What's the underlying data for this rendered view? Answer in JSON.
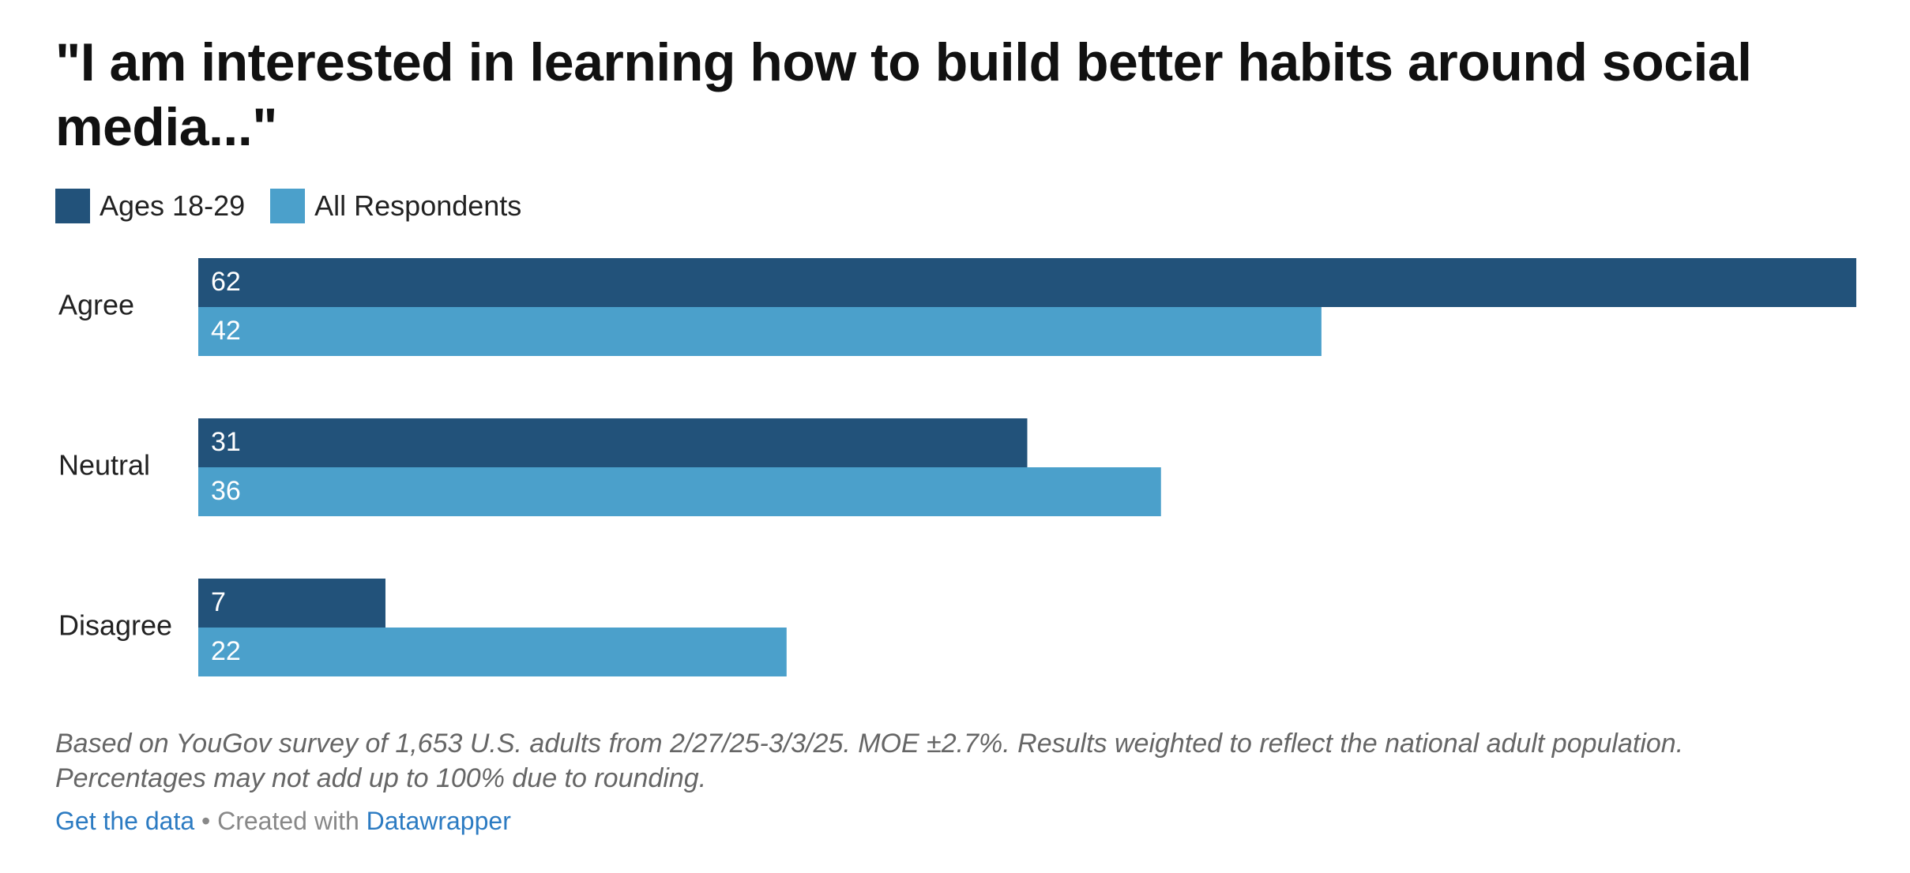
{
  "colors": {
    "ages_18_29": "#22527a",
    "all_respondents": "#4ba0cb"
  },
  "chart_data": {
    "type": "bar",
    "orientation": "horizontal",
    "title": "\"I am interested in learning how to build better habits around social media...\"",
    "categories": [
      "Agree",
      "Neutral",
      "Disagree"
    ],
    "series": [
      {
        "name": "Ages 18-29",
        "values": [
          62,
          31,
          7
        ]
      },
      {
        "name": "All Respondents",
        "values": [
          42,
          36,
          22
        ]
      }
    ],
    "xlim": [
      0,
      62
    ],
    "legend": "top-left",
    "grid": false,
    "xlabel": "",
    "ylabel": ""
  },
  "notes": {
    "line1": "Based on YouGov survey of 1,653 U.S. adults from 2/27/25-3/3/25. MOE ±2.7%. Results weighted to reflect the national adult population.",
    "line2": "Percentages may not add up to 100% due to rounding."
  },
  "footer": {
    "get_data": "Get the data",
    "separator": " • Created with ",
    "datawrapper": "Datawrapper"
  }
}
